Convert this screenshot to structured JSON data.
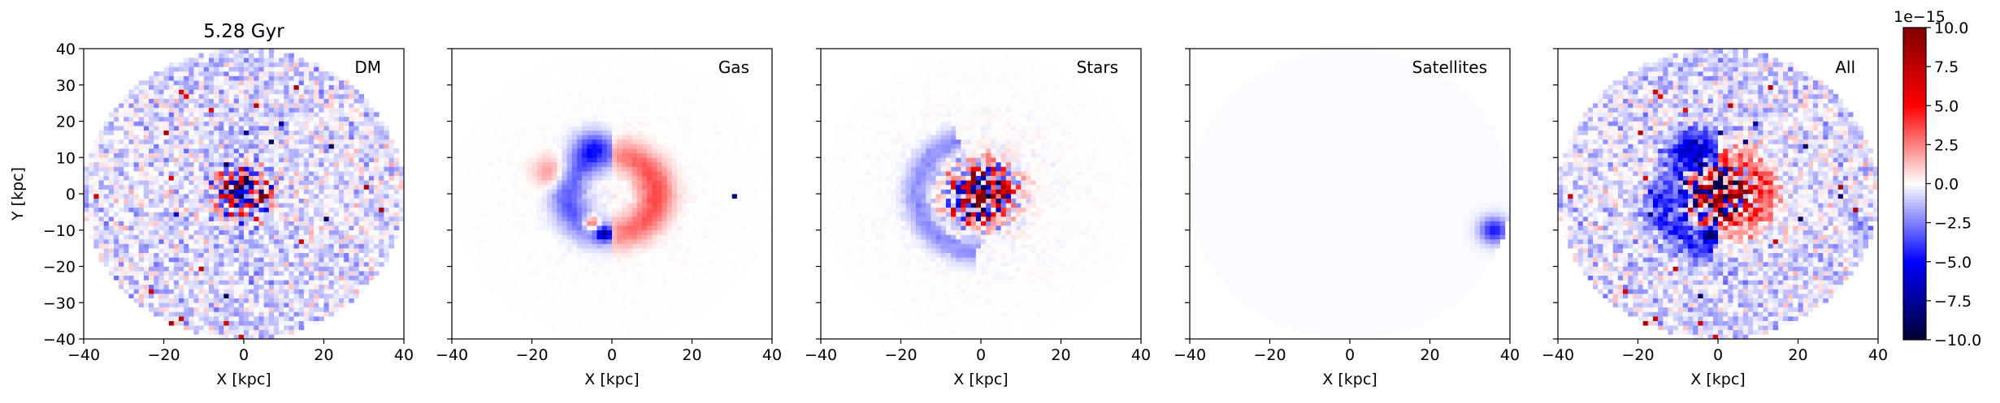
{
  "chart_data": {
    "type": "heatmap",
    "title": "5.28 Gyr",
    "panels": [
      {
        "name": "DM",
        "component": "dm",
        "xlabel": "X [kpc]",
        "ylabel": "Y [kpc]"
      },
      {
        "name": "Gas",
        "component": "gas",
        "xlabel": "X [kpc]",
        "ylabel": ""
      },
      {
        "name": "Stars",
        "component": "stars",
        "xlabel": "X [kpc]",
        "ylabel": ""
      },
      {
        "name": "Satellites",
        "component": "satellites",
        "xlabel": "X [kpc]",
        "ylabel": ""
      },
      {
        "name": "All",
        "component": "all",
        "xlabel": "X [kpc]",
        "ylabel": ""
      }
    ],
    "xlim": [
      -40,
      40
    ],
    "ylim": [
      -40,
      40
    ],
    "x_ticks": [
      -40,
      -20,
      0,
      20,
      40
    ],
    "x_tick_labels": [
      "−40",
      "−20",
      "0",
      "20",
      "40"
    ],
    "y_ticks": [
      -40,
      -30,
      -20,
      -10,
      0,
      10,
      20,
      30,
      40
    ],
    "y_tick_labels": [
      "−40",
      "−30",
      "−20",
      "−10",
      "0",
      "10",
      "20",
      "30",
      "40"
    ],
    "colorbar": {
      "colormap": "seismic",
      "vmin": -10.0,
      "vmax": 10.0,
      "scale_label": "1e−15",
      "ticks": [
        10.0,
        7.5,
        5.0,
        2.5,
        0.0,
        -2.5,
        -5.0,
        -7.5,
        -10.0
      ],
      "tick_labels": [
        "10.0",
        "7.5",
        "5.0",
        "2.5",
        "0.0",
        "−2.5",
        "−5.0",
        "−7.5",
        "−10.0"
      ],
      "colors": [
        "#000033",
        "#0000ff",
        "#ffffff",
        "#ff0000",
        "#800000"
      ]
    },
    "features": {
      "data_radius_kpc": 40,
      "satellite_blob": {
        "x": 36,
        "y": -10,
        "radius": 3.5,
        "value": -4.5
      },
      "stray_gas_clump": {
        "x": 31,
        "y": -1,
        "value": -9
      },
      "bin_size_kpc": 1.25
    }
  }
}
